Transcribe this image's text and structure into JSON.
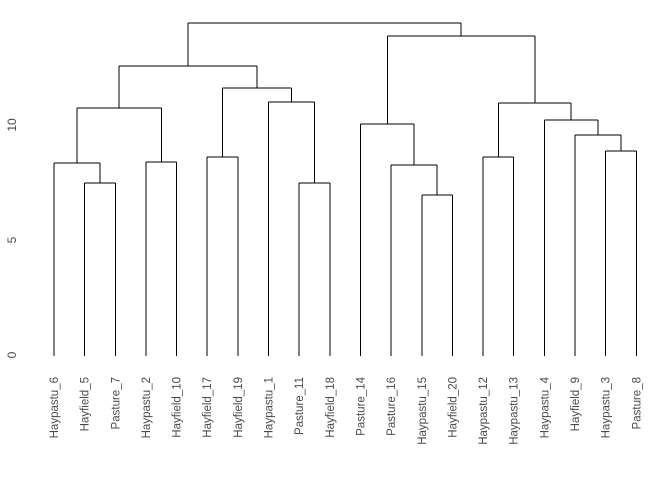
{
  "figure": {
    "kind": "r-plot-dendrogram",
    "background_color": "#ffffff"
  },
  "colors": {
    "line": "#000000",
    "text": "#4a4a4a"
  },
  "chart_data": {
    "type": "dendrogram",
    "title": "",
    "xlabel": "",
    "ylabel": "",
    "legend": null,
    "grid": false,
    "yticks": [
      0,
      5,
      10
    ],
    "ylim": [
      0,
      15.4
    ],
    "leaves": [
      "Haypastu_6",
      "Hayfield_5",
      "Pasture_7",
      "Haypastu_2",
      "Hayfield_10",
      "Hayfield_17",
      "Hayfield_19",
      "Haypastu_1",
      "Pasture_11",
      "Hayfield_18",
      "Pasture_14",
      "Pasture_16",
      "Haypastu_15",
      "Hayfield_20",
      "Haypastu_12",
      "Haypastu_13",
      "Haypastu_4",
      "Hayfield_9",
      "Haypastu_3",
      "Pasture_8"
    ],
    "tree": {
      "h": 14.43,
      "c": [
        {
          "h": 12.57,
          "c": [
            {
              "h": 10.74,
              "c": [
                {
                  "h": 8.35,
                  "c": [
                    "Haypastu_6",
                    {
                      "h": 7.48,
                      "c": [
                        "Hayfield_5",
                        "Pasture_7"
                      ]
                    }
                  ]
                },
                {
                  "h": 8.39,
                  "c": [
                    "Haypastu_2",
                    "Hayfield_10"
                  ]
                }
              ]
            },
            {
              "h": 11.61,
              "c": [
                {
                  "h": 8.61,
                  "c": [
                    "Hayfield_17",
                    "Hayfield_19"
                  ]
                },
                {
                  "h": 11.0,
                  "c": [
                    "Haypastu_1",
                    {
                      "h": 7.48,
                      "c": [
                        "Pasture_11",
                        "Hayfield_18"
                      ]
                    }
                  ]
                }
              ]
            }
          ]
        },
        {
          "h": 13.87,
          "c": [
            {
              "h": 10.04,
              "c": [
                "Pasture_14",
                {
                  "h": 8.26,
                  "c": [
                    "Pasture_16",
                    {
                      "h": 6.96,
                      "c": [
                        "Haypastu_15",
                        "Hayfield_20"
                      ]
                    }
                  ]
                }
              ]
            },
            {
              "h": 10.96,
              "c": [
                {
                  "h": 8.61,
                  "c": [
                    "Haypastu_12",
                    "Haypastu_13"
                  ]
                },
                {
                  "h": 10.22,
                  "c": [
                    "Haypastu_4",
                    {
                      "h": 9.57,
                      "c": [
                        "Hayfield_9",
                        {
                          "h": 8.87,
                          "c": [
                            "Haypastu_3",
                            "Pasture_8"
                          ]
                        }
                      ]
                    }
                  ]
                }
              ]
            }
          ]
        }
      ]
    }
  }
}
